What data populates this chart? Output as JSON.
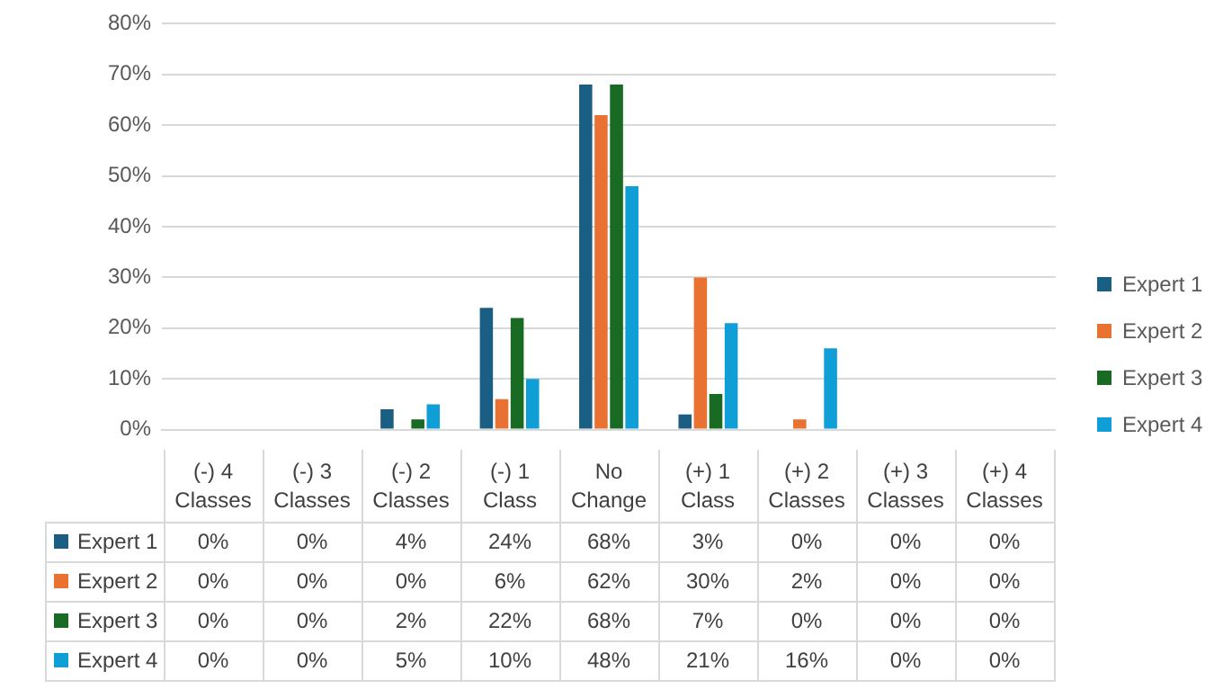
{
  "chart_data": {
    "type": "bar",
    "categories": [
      "(-) 4 Classes",
      "(-) 3 Classes",
      "(-) 2 Classes",
      "(-) 1 Class",
      "No Change",
      "(+) 1 Class",
      "(+) 2 Classes",
      "(+) 3 Classes",
      "(+) 4 Classes"
    ],
    "series": [
      {
        "name": "Expert 1",
        "color": "#1b5e84",
        "values": [
          0,
          0,
          4,
          24,
          68,
          3,
          0,
          0,
          0
        ],
        "value_labels": [
          "0%",
          "0%",
          "4%",
          "24%",
          "68%",
          "3%",
          "0%",
          "0%",
          "0%"
        ]
      },
      {
        "name": "Expert 2",
        "color": "#e97132",
        "values": [
          0,
          0,
          0,
          6,
          62,
          30,
          2,
          0,
          0
        ],
        "value_labels": [
          "0%",
          "0%",
          "0%",
          "6%",
          "62%",
          "30%",
          "2%",
          "0%",
          "0%"
        ]
      },
      {
        "name": "Expert 3",
        "color": "#196b24",
        "values": [
          0,
          0,
          2,
          22,
          68,
          7,
          0,
          0,
          0
        ],
        "value_labels": [
          "0%",
          "0%",
          "2%",
          "22%",
          "68%",
          "7%",
          "0%",
          "0%",
          "0%"
        ]
      },
      {
        "name": "Expert 4",
        "color": "#0f9ed5",
        "values": [
          0,
          0,
          5,
          10,
          48,
          21,
          16,
          0,
          0
        ],
        "value_labels": [
          "0%",
          "0%",
          "5%",
          "10%",
          "48%",
          "21%",
          "16%",
          "0%",
          "0%"
        ]
      }
    ],
    "ylim": [
      0,
      80
    ],
    "yticks": [
      {
        "value": 0,
        "label": "0%"
      },
      {
        "value": 10,
        "label": "10%"
      },
      {
        "value": 20,
        "label": "20%"
      },
      {
        "value": 30,
        "label": "30%"
      },
      {
        "value": 40,
        "label": "40%"
      },
      {
        "value": 50,
        "label": "50%"
      },
      {
        "value": 60,
        "label": "60%"
      },
      {
        "value": 70,
        "label": "70%"
      },
      {
        "value": 80,
        "label": "80%"
      }
    ],
    "grid": "y",
    "legend": "right"
  }
}
